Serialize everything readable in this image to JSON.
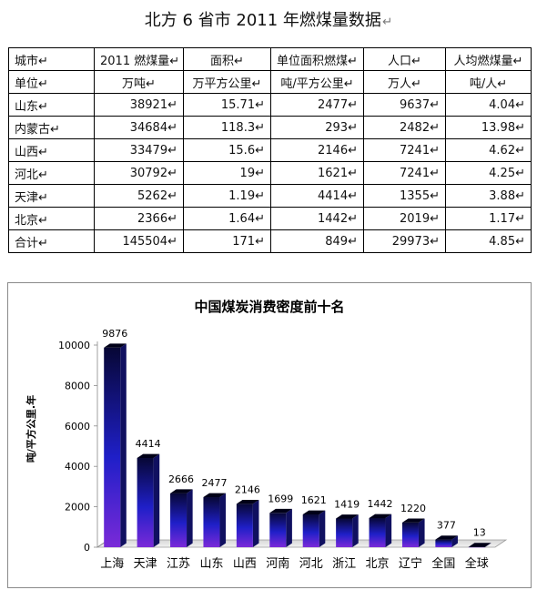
{
  "document": {
    "title": "北方 6 省市 2011 年燃煤量数据",
    "paragraph_mark": "↵"
  },
  "table": {
    "header_row": [
      "城市",
      "2011 燃煤量",
      "面积",
      "单位面积燃煤",
      "人口",
      "人均燃煤量"
    ],
    "unit_row": [
      "单位",
      "万吨",
      "万平方公里",
      "吨/平方公里",
      "万人",
      "吨/人"
    ],
    "rows": [
      [
        "山东",
        "38921",
        "15.71",
        "2477",
        "9637",
        "4.04"
      ],
      [
        "内蒙古",
        "34684",
        "118.3",
        "293",
        "2482",
        "13.98"
      ],
      [
        "山西",
        "33479",
        "15.6",
        "2146",
        "7241",
        "4.62"
      ],
      [
        "河北",
        "30792",
        "19",
        "1621",
        "7241",
        "4.25"
      ],
      [
        "天津",
        "5262",
        "1.19",
        "4414",
        "1355",
        "3.88"
      ],
      [
        "北京",
        "2366",
        "1.64",
        "1442",
        "2019",
        "1.17"
      ],
      [
        "合计",
        "145504",
        "171",
        "849",
        "29973",
        "4.85"
      ]
    ]
  },
  "chart_data": {
    "type": "bar",
    "title": "中国煤炭消费密度前十名",
    "ylabel": "吨/平方公里.年",
    "xlabel": "",
    "categories": [
      "上海",
      "天津",
      "江苏",
      "山东",
      "山西",
      "河南",
      "河北",
      "浙江",
      "北京",
      "辽宁",
      "全国",
      "全球"
    ],
    "values": [
      9876,
      4414,
      2666,
      2477,
      2146,
      1699,
      1621,
      1419,
      1442,
      1220,
      377,
      13
    ],
    "ylim": [
      0,
      10000
    ],
    "yticks": [
      "0",
      "2000",
      "4000",
      "6000",
      "8000",
      "10000"
    ],
    "grid": false,
    "legend": "none",
    "bar_colors": {
      "top": "#070735",
      "middle": "#1f1fc8",
      "bottom": "#7a2ad8"
    }
  }
}
